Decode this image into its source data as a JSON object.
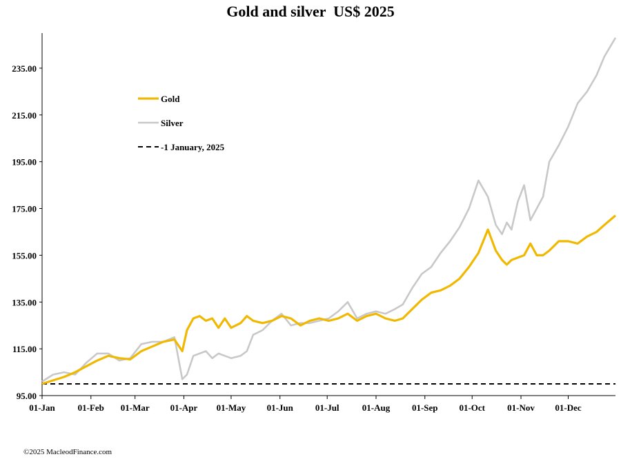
{
  "chart_data": {
    "type": "line",
    "title": "Gold and silver  US$ 2025",
    "ylim": [
      95,
      250
    ],
    "yticks": [
      "95.00",
      "115.00",
      "135.00",
      "155.00",
      "175.00",
      "195.00",
      "215.00",
      "235.00"
    ],
    "yticks_values": [
      95,
      115,
      135,
      155,
      175,
      195,
      215,
      235
    ],
    "xlim": [
      1,
      365
    ],
    "xticks": [
      "01-Jan",
      "01-Feb",
      "01-Mar",
      "01-Apr",
      "01-May",
      "01-Jun",
      "01-Jul",
      "01-Aug",
      "01-Sep",
      "01-Oct",
      "01-Nov",
      "01-Dec"
    ],
    "xticks_days": [
      1,
      32,
      60,
      91,
      121,
      152,
      182,
      213,
      244,
      274,
      305,
      335
    ],
    "legend_position": "upper-left",
    "grid": false,
    "series": [
      {
        "name": "Gold",
        "color": "#F0B800",
        "x": [
          1,
          8,
          15,
          22,
          29,
          36,
          43,
          50,
          57,
          64,
          71,
          78,
          85,
          90,
          93,
          97,
          101,
          105,
          109,
          113,
          117,
          121,
          127,
          131,
          135,
          141,
          147,
          153,
          159,
          165,
          171,
          177,
          183,
          189,
          195,
          201,
          207,
          213,
          219,
          225,
          230,
          236,
          242,
          248,
          254,
          260,
          266,
          272,
          278,
          284,
          289,
          293,
          296,
          299,
          303,
          307,
          311,
          315,
          319,
          323,
          329,
          335,
          341,
          347,
          353,
          358,
          365
        ],
        "values": [
          100,
          101.5,
          103,
          105,
          107.5,
          110,
          112,
          111,
          110.5,
          114,
          116,
          118,
          119,
          114,
          123,
          128,
          129,
          127,
          128,
          124,
          128,
          124,
          126,
          129,
          127,
          126,
          127,
          129,
          128,
          125,
          127,
          128,
          127,
          128,
          130,
          127,
          129,
          130,
          128,
          127,
          128,
          132,
          136,
          139,
          140,
          142,
          145,
          150,
          156,
          166,
          157,
          153,
          151,
          153,
          154,
          155,
          160,
          155,
          155,
          157,
          161,
          161,
          160,
          163,
          165,
          168,
          172
        ]
      },
      {
        "name": "Silver",
        "color": "#C8C8C8",
        "x": [
          1,
          8,
          15,
          22,
          29,
          36,
          43,
          50,
          57,
          64,
          71,
          78,
          85,
          90,
          93,
          97,
          101,
          105,
          109,
          113,
          117,
          121,
          127,
          131,
          135,
          141,
          147,
          153,
          159,
          165,
          171,
          177,
          183,
          189,
          195,
          201,
          207,
          213,
          219,
          225,
          230,
          236,
          242,
          248,
          254,
          260,
          266,
          272,
          278,
          284,
          289,
          293,
          296,
          299,
          303,
          307,
          311,
          315,
          319,
          323,
          329,
          335,
          341,
          347,
          353,
          358,
          365
        ],
        "values": [
          101,
          104,
          105,
          104,
          109,
          113,
          113,
          110,
          111,
          117,
          118,
          118,
          120,
          102,
          104,
          112,
          113,
          114,
          111,
          113,
          112,
          111,
          112,
          114,
          121,
          123,
          127,
          130,
          125,
          126,
          126,
          127,
          128,
          131,
          135,
          128,
          130,
          131,
          130,
          132,
          134,
          141,
          147,
          150,
          156,
          161,
          167,
          175,
          187,
          180,
          168,
          164,
          169,
          166,
          178,
          185,
          170,
          175,
          180,
          195,
          202,
          210,
          220,
          225,
          232,
          240,
          248
        ]
      },
      {
        "name": "-1 January, 2025",
        "color": "#000000",
        "x": [
          1,
          365
        ],
        "values": [
          100,
          100
        ]
      }
    ]
  },
  "credit": "©2025 MacleodFinance.com"
}
